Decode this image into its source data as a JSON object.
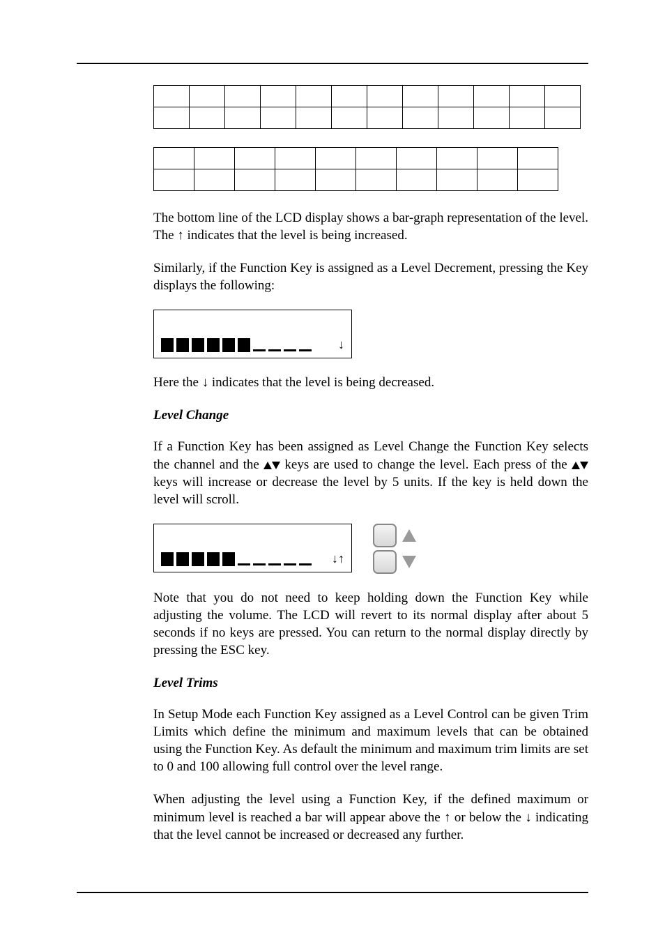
{
  "tables": {
    "t1": {
      "rows": 2,
      "cols": 12
    },
    "t2": {
      "rows": 2,
      "cols": 10
    }
  },
  "para1a": "The bottom line of the LCD display shows a bar-graph representation of the level. The ",
  "para1arrow": "↑",
  "para1b": " indicates that the level is being increased.",
  "para2": "Similarly, if the Function Key is assigned as a Level Decrement, pressing the Key displays the following:",
  "lcd_dec": {
    "full": 6,
    "empty": 4,
    "arrows": "↓"
  },
  "para3a": "Here the ",
  "para3arrow": "↓",
  "para3b": " indicates that the level is being decreased.",
  "heading1": "Level Change",
  "para4a": "If a Function Key has been assigned as Level Change the Function Key selects the channel and the ",
  "para4b": " keys are used to change the level. Each press of the ",
  "para4c": " keys will increase or decrease the level by 5 units. If the key is held down the level will scroll.",
  "lcd_change": {
    "full": 5,
    "empty": 5,
    "arrows": "↓↑"
  },
  "para5": "Note that you do not need to keep holding down the Function Key while adjusting the volume. The LCD will revert to its normal display after about 5 seconds if no keys are pressed. You can return to the normal display directly by pressing the ESC key.",
  "heading2": "Level Trims",
  "para6": "In Setup Mode each Function Key assigned as a Level Control can be given Trim Limits which define the minimum and maximum levels that can be obtained using the Function Key. As default the minimum and maximum trim limits are set to 0 and 100 allowing full control over the level range.",
  "para7a": "When adjusting the level using a Function Key, if the defined maximum or minimum level is reached a bar will appear above the ",
  "para7arrow1": "↑",
  "para7b": " or below the ",
  "para7arrow2": "↓",
  "para7c": " indicating that the level cannot be increased or decreased any further."
}
